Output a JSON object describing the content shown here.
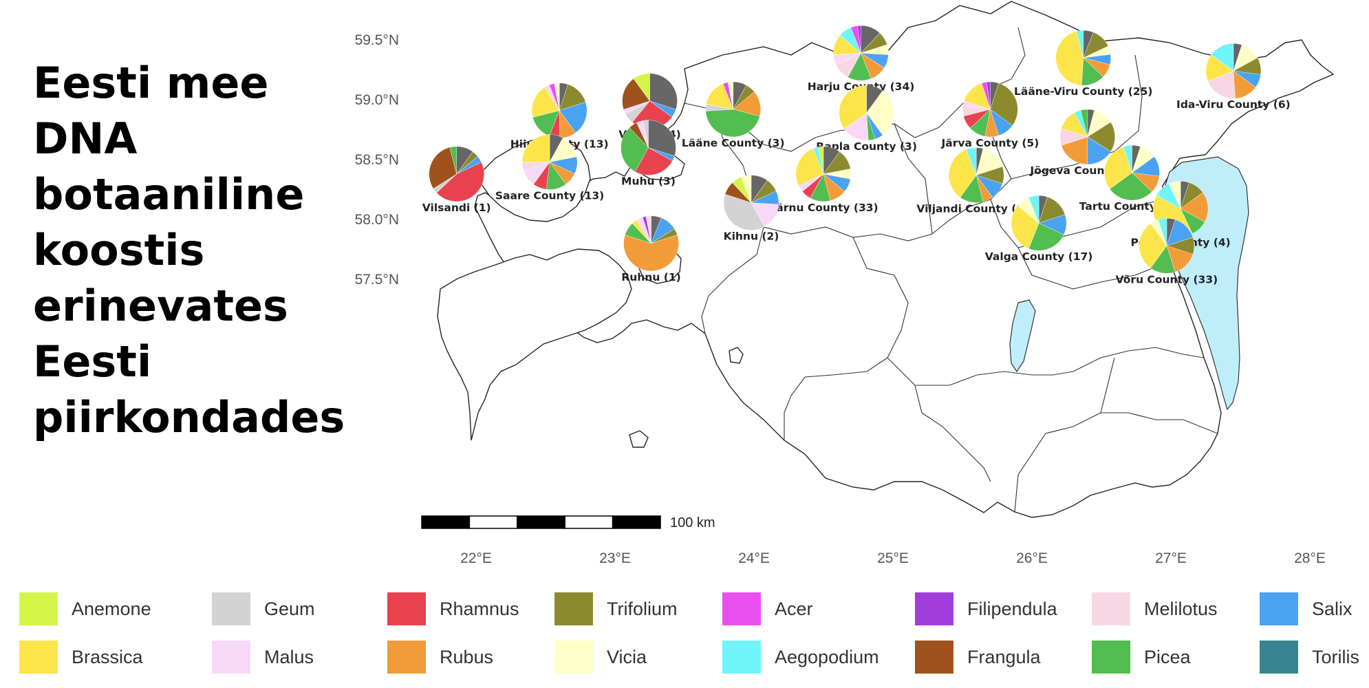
{
  "title": "Eesti mee\nDNA\nbotaaniline\nkoostis\nerinevates\nEesti\npiirkondades",
  "axes": {
    "lat_ticks": [
      "59.5°N",
      "59.0°N",
      "58.5°N",
      "58.0°N",
      "57.5°N"
    ],
    "lon_ticks": [
      "22°E",
      "23°E",
      "24°E",
      "25°E",
      "26°E",
      "27°E",
      "28°E"
    ]
  },
  "scale_bar": {
    "label": "100 km",
    "distance_km": 100
  },
  "legend": [
    {
      "name": "Anemone",
      "color": "#d4f548"
    },
    {
      "name": "Brassica",
      "color": "#fbe54a"
    },
    {
      "name": "Geum",
      "color": "#d3d3d3"
    },
    {
      "name": "Malus",
      "color": "#f7d9f7"
    },
    {
      "name": "Rhamnus",
      "color": "#e8424f"
    },
    {
      "name": "Rubus",
      "color": "#f19c38"
    },
    {
      "name": "Trifolium",
      "color": "#8c8a2e"
    },
    {
      "name": "Vicia",
      "color": "#fefec8"
    },
    {
      "name": "Acer",
      "color": "#ea4ff0"
    },
    {
      "name": "Aegopodium",
      "color": "#6ff5f9"
    },
    {
      "name": "Filipendula",
      "color": "#a23ddb"
    },
    {
      "name": "Frangula",
      "color": "#a0521c"
    },
    {
      "name": "Melilotus",
      "color": "#f8d7e5"
    },
    {
      "name": "Picea",
      "color": "#52bd50"
    },
    {
      "name": "Salix",
      "color": "#4aa2f2"
    },
    {
      "name": "Torilis",
      "color": "#36858e"
    }
  ],
  "other_color": "#666666",
  "regions": [
    {
      "label": "Harju County (34)",
      "lon": 24.77,
      "lat": 59.39,
      "slices": {
        "Other": 12,
        "Trifolium": 8,
        "Vicia": 6,
        "Salix": 8,
        "Rubus": 10,
        "Picea": 14,
        "Melilotus": 10,
        "Malus": 6,
        "Brassica": 12,
        "Aegopodium": 8,
        "Acer": 4,
        "Filipendula": 2
      }
    },
    {
      "label": "Lääne-Viru County (25)",
      "lon": 26.37,
      "lat": 59.35,
      "slices": {
        "Other": 6,
        "Trifolium": 12,
        "Vicia": 5,
        "Salix": 6,
        "Rubus": 8,
        "Picea": 14,
        "Brassica": 45,
        "Aegopodium": 4
      }
    },
    {
      "label": "Ida-Viru County (6)",
      "lon": 27.45,
      "lat": 59.24,
      "slices": {
        "Other": 5,
        "Vicia": 12,
        "Trifolium": 10,
        "Salix": 8,
        "Rubus": 14,
        "Melilotus": 20,
        "Brassica": 16,
        "Aegopodium": 15
      }
    },
    {
      "label": "Vormsi (4)",
      "lon": 23.25,
      "lat": 58.99,
      "slices": {
        "Other": 30,
        "Salix": 5,
        "Rhamnus": 26,
        "Geum": 6,
        "Malus": 3,
        "Frangula": 20,
        "Anemone": 10
      }
    },
    {
      "label": "Hiiu County (13)",
      "lon": 22.6,
      "lat": 58.91,
      "slices": {
        "Other": 5,
        "Trifolium": 15,
        "Salix": 20,
        "Rubus": 10,
        "Rhamnus": 6,
        "Picea": 15,
        "Brassica": 20,
        "Melilotus": 3,
        "Acer": 3,
        "Vicia": 3
      }
    },
    {
      "label": "Lääne County (3)",
      "lon": 23.85,
      "lat": 58.92,
      "slices": {
        "Other": 8,
        "Trifolium": 6,
        "Rubus": 15,
        "Picea": 45,
        "Geum": 4,
        "Brassica": 16,
        "Acer": 3,
        "Vicia": 3
      }
    },
    {
      "label": "Rapla County (3)",
      "lon": 24.81,
      "lat": 58.89,
      "slices": {
        "Other": 10,
        "Vicia": 30,
        "Salix": 5,
        "Picea": 4,
        "Malus": 16,
        "Brassica": 35
      }
    },
    {
      "label": "Järva County (5)",
      "lon": 25.7,
      "lat": 58.92,
      "slices": {
        "Other": 5,
        "Trifolium": 30,
        "Salix": 10,
        "Rubus": 8,
        "Picea": 10,
        "Rhamnus": 8,
        "Melilotus": 6,
        "Malus": 3,
        "Brassica": 15,
        "Acer": 3,
        "Filipendula": 2
      }
    },
    {
      "label": "Jõgeva County (10)",
      "lon": 26.4,
      "lat": 58.69,
      "slices": {
        "Other": 4,
        "Vicia": 12,
        "Trifolium": 18,
        "Salix": 16,
        "Rubus": 20,
        "Melilotus": 10,
        "Brassica": 12,
        "Aegopodium": 4,
        "Picea": 4
      }
    },
    {
      "label": "Muhu (3)",
      "lon": 23.24,
      "lat": 58.6,
      "slices": {
        "Other": 30,
        "Salix": 3,
        "Rhamnus": 25,
        "Picea": 30,
        "Frangula": 5,
        "Malus": 4,
        "Geum": 3
      }
    },
    {
      "label": "Saare County (13)",
      "lon": 22.53,
      "lat": 58.48,
      "slices": {
        "Other": 8,
        "Vicia": 14,
        "Salix": 10,
        "Rubus": 8,
        "Picea": 12,
        "Rhamnus": 8,
        "Malus": 10,
        "Melilotus": 5,
        "Brassica": 25
      }
    },
    {
      "label": "Vilsandi (1)",
      "lon": 21.86,
      "lat": 58.38,
      "slices": {
        "Other": 10,
        "Trifolium": 4,
        "Salix": 4,
        "Rhamnus": 45,
        "Geum": 3,
        "Frangula": 30,
        "Picea": 4
      }
    },
    {
      "label": "Pärnu County (33)",
      "lon": 24.5,
      "lat": 58.38,
      "slices": {
        "Other": 10,
        "Trifolium": 12,
        "Vicia": 6,
        "Salix": 8,
        "Rubus": 10,
        "Picea": 12,
        "Rhamnus": 6,
        "Malus": 4,
        "Brassica": 26,
        "Aegopodium": 3,
        "Anemone": 3
      }
    },
    {
      "label": "Viljandi County (28)",
      "lon": 25.6,
      "lat": 58.37,
      "slices": {
        "Other": 4,
        "Vicia": 16,
        "Trifolium": 10,
        "Salix": 10,
        "Rubus": 6,
        "Picea": 14,
        "Brassica": 34,
        "Aegopodium": 6
      }
    },
    {
      "label": "Tartu County (26)",
      "lon": 26.72,
      "lat": 58.39,
      "slices": {
        "Other": 5,
        "Vicia": 10,
        "Salix": 12,
        "Rubus": 10,
        "Picea": 28,
        "Brassica": 30,
        "Aegopodium": 5
      }
    },
    {
      "label": "Kihnu (2)",
      "lon": 23.98,
      "lat": 58.14,
      "slices": {
        "Other": 10,
        "Trifolium": 8,
        "Salix": 8,
        "Malus": 16,
        "Geum": 38,
        "Frangula": 8,
        "Anemone": 6,
        "Vicia": 6
      }
    },
    {
      "label": "Põlva County (4)",
      "lon": 27.07,
      "lat": 58.09,
      "slices": {
        "Other": 5,
        "Trifolium": 10,
        "Rubus": 18,
        "Picea": 10,
        "Brassica": 40,
        "Aegopodium": 10,
        "Vicia": 7
      }
    },
    {
      "label": "Valga County (17)",
      "lon": 26.05,
      "lat": 57.97,
      "slices": {
        "Other": 5,
        "Trifolium": 15,
        "Salix": 12,
        "Picea": 24,
        "Brassica": 30,
        "Vicia": 8,
        "Aegopodium": 6
      }
    },
    {
      "label": "Võru County (33)",
      "lon": 26.97,
      "lat": 57.78,
      "slices": {
        "Other": 5,
        "Salix": 15,
        "Trifolium": 10,
        "Rubus": 15,
        "Picea": 15,
        "Brassica": 30,
        "Vicia": 5,
        "Aegopodium": 5
      }
    },
    {
      "label": "Ruhnu (1)",
      "lon": 23.26,
      "lat": 57.8,
      "slices": {
        "Other": 6,
        "Salix": 10,
        "Trifolium": 4,
        "Rubus": 60,
        "Picea": 8,
        "Brassica": 3,
        "Malus": 4,
        "Filipendula": 2,
        "Melilotus": 3
      }
    }
  ]
}
